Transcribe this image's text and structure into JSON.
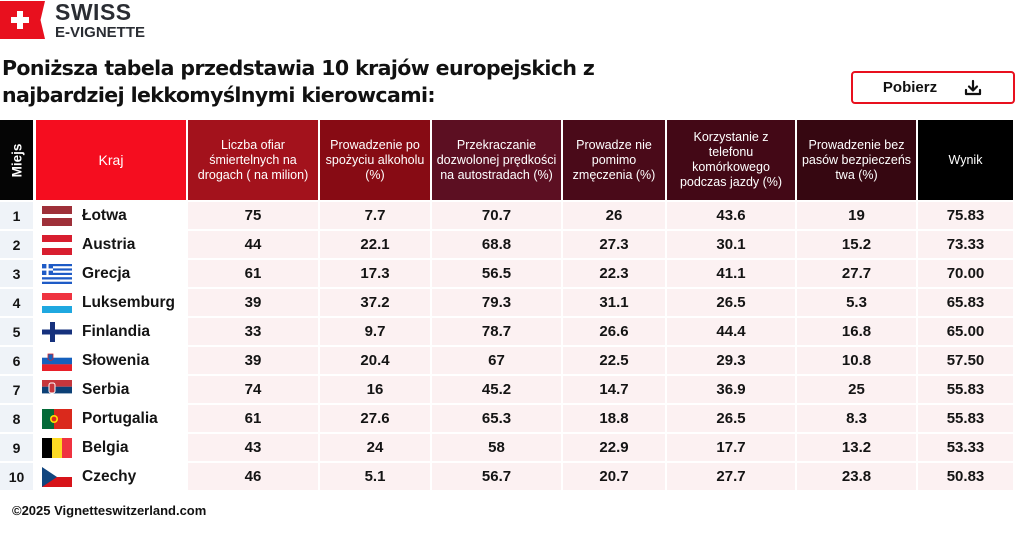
{
  "brand": {
    "line1": "SWISS",
    "line2": "E-VIGNETTE",
    "color": "#e8101e"
  },
  "title": "Poniższa tabela przedstawia 10 krajów europejskich z najbardziej lekkomyślnymi kierowcami:",
  "download_button": {
    "label": "Pobierz",
    "icon": "download-icon"
  },
  "table": {
    "headers": [
      {
        "label": "Miejs",
        "color": "#050505"
      },
      {
        "label": "Kraj",
        "color": "#f50d1f"
      },
      {
        "label": "Liczba ofiar śmiertelnych na drogach ( na milion)",
        "color": "#a3121c"
      },
      {
        "label": "Prowadzenie po spożyciu alkoholu (%)",
        "color": "#870b14"
      },
      {
        "label": "Przekraczanie dozwolonej prędkości na autostradach (%)",
        "color": "#5c0f22"
      },
      {
        "label": "Prowadze nie pomimo zmęczenia (%)",
        "color": "#4a0a19"
      },
      {
        "label": "Korzystanie z telefonu komórkowego podczas jazdy (%)",
        "color": "#430816"
      },
      {
        "label": "Prowadzenie bez pasów bezpieczeńs twa (%)",
        "color": "#360711"
      },
      {
        "label": "Wynik",
        "color": "#000000"
      }
    ],
    "rows": [
      {
        "rank": "1",
        "country": "Łotwa",
        "flag": "latvia-flag",
        "fatalities": "75",
        "alcohol": "7.7",
        "speeding": "70.7",
        "fatigue": "26",
        "phone": "43.6",
        "seatbelt": "19",
        "score": "75.83"
      },
      {
        "rank": "2",
        "country": "Austria",
        "flag": "austria-flag",
        "fatalities": "44",
        "alcohol": "22.1",
        "speeding": "68.8",
        "fatigue": "27.3",
        "phone": "30.1",
        "seatbelt": "15.2",
        "score": "73.33"
      },
      {
        "rank": "3",
        "country": "Grecja",
        "flag": "greece-flag",
        "fatalities": "61",
        "alcohol": "17.3",
        "speeding": "56.5",
        "fatigue": "22.3",
        "phone": "41.1",
        "seatbelt": "27.7",
        "score": "70.00"
      },
      {
        "rank": "4",
        "country": "Luksemburg",
        "flag": "luxembourg-flag",
        "fatalities": "39",
        "alcohol": "37.2",
        "speeding": "79.3",
        "fatigue": "31.1",
        "phone": "26.5",
        "seatbelt": "5.3",
        "score": "65.83"
      },
      {
        "rank": "5",
        "country": "Finlandia",
        "flag": "finland-flag",
        "fatalities": "33",
        "alcohol": "9.7",
        "speeding": "78.7",
        "fatigue": "26.6",
        "phone": "44.4",
        "seatbelt": "16.8",
        "score": "65.00"
      },
      {
        "rank": "6",
        "country": "Słowenia",
        "flag": "slovenia-flag",
        "fatalities": "39",
        "alcohol": "20.4",
        "speeding": "67",
        "fatigue": "22.5",
        "phone": "29.3",
        "seatbelt": "10.8",
        "score": "57.50"
      },
      {
        "rank": "7",
        "country": "Serbia",
        "flag": "serbia-flag",
        "fatalities": "74",
        "alcohol": "16",
        "speeding": "45.2",
        "fatigue": "14.7",
        "phone": "36.9",
        "seatbelt": "25",
        "score": "55.83"
      },
      {
        "rank": "8",
        "country": "Portugalia",
        "flag": "portugal-flag",
        "fatalities": "61",
        "alcohol": "27.6",
        "speeding": "65.3",
        "fatigue": "18.8",
        "phone": "26.5",
        "seatbelt": "8.3",
        "score": "55.83"
      },
      {
        "rank": "9",
        "country": "Belgia",
        "flag": "belgium-flag",
        "fatalities": "43",
        "alcohol": "24",
        "speeding": "58",
        "fatigue": "22.9",
        "phone": "17.7",
        "seatbelt": "13.2",
        "score": "53.33"
      },
      {
        "rank": "10",
        "country": "Czechy",
        "flag": "czech-flag",
        "fatalities": "46",
        "alcohol": "5.1",
        "speeding": "56.7",
        "fatigue": "20.7",
        "phone": "27.7",
        "seatbelt": "23.8",
        "score": "50.83"
      }
    ]
  },
  "footer": "©2025 Vignetteswitzerland.com"
}
